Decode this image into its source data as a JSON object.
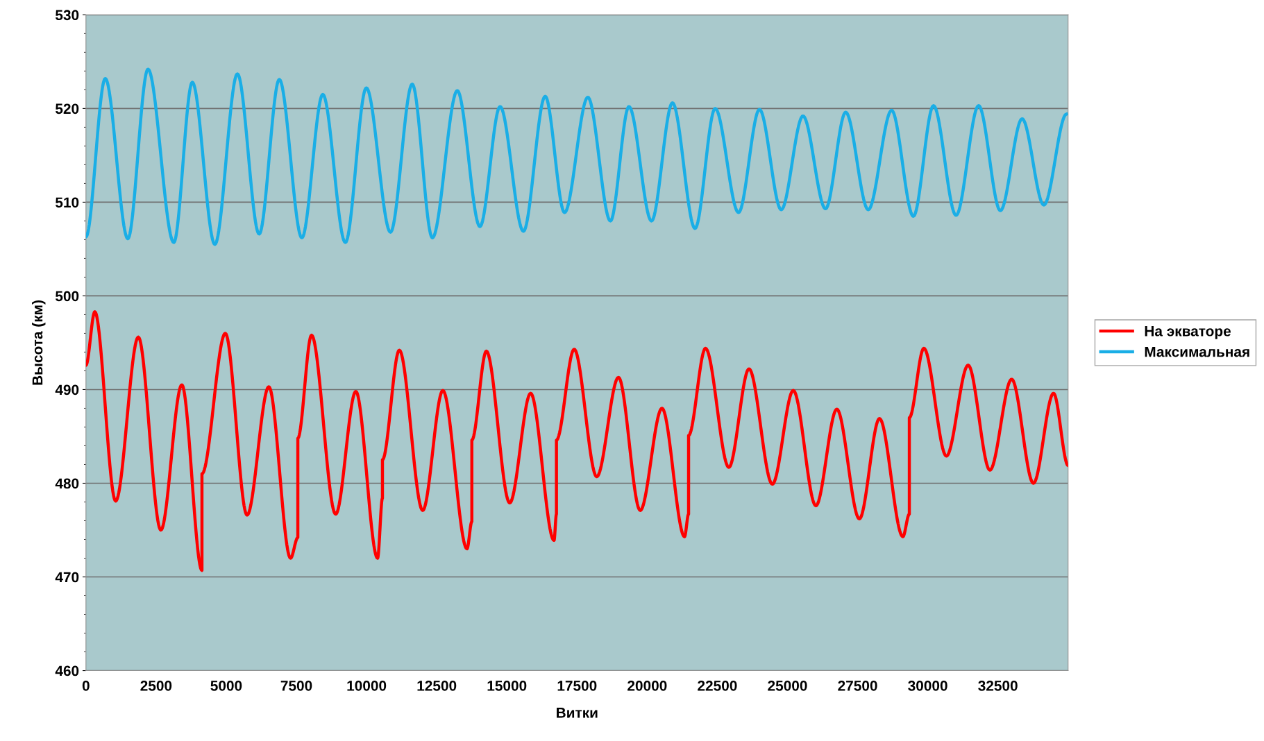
{
  "chart_data": {
    "type": "line",
    "xlabel": "Витки",
    "ylabel": "Высота (км)",
    "xlim": [
      0,
      35000
    ],
    "xticks": [
      0,
      2500,
      5000,
      7500,
      10000,
      12500,
      15000,
      17500,
      20000,
      22500,
      25000,
      27500,
      30000,
      32500
    ],
    "ylim": [
      460,
      530
    ],
    "yticks": [
      460,
      470,
      480,
      490,
      500,
      510,
      520,
      530
    ],
    "grid": "y",
    "legend": "right",
    "marker": "none",
    "line_style": "solid",
    "series": [
      {
        "name": "На экваторе",
        "color": "#ff0000",
        "x": [
          0,
          316,
          1060,
          1866,
          2670,
          3417,
          4134,
          4134,
          4967,
          5742,
          6517,
          7292,
          7551,
          7551,
          8039,
          8900,
          9618,
          10393,
          10566,
          10566,
          11168,
          12001,
          12719,
          13580,
          13752,
          13752,
          14269,
          15102,
          15848,
          16681,
          16767,
          16767,
          17399,
          18203,
          18978,
          19753,
          20528,
          21332,
          21476,
          21476,
          22079,
          22911,
          23629,
          24462,
          25208,
          26012,
          26759,
          27563,
          28280,
          29113,
          29343,
          29343,
          29860,
          30664,
          31439,
          32214,
          32990,
          33765,
          34482,
          35000
        ],
        "values": [
          492.6,
          498.3,
          478.1,
          495.6,
          475,
          490.5,
          470.7,
          481,
          496,
          476.6,
          490.3,
          472,
          474.2,
          484.8,
          495.8,
          476.7,
          489.8,
          472,
          478.4,
          482.5,
          494.2,
          477.1,
          489.9,
          473,
          475.9,
          484.6,
          494.1,
          477.9,
          489.6,
          473.9,
          476.7,
          484.6,
          494.3,
          480.7,
          491.3,
          477.1,
          488,
          474.3,
          476.7,
          485.1,
          494.4,
          481.7,
          492.2,
          479.9,
          489.9,
          477.6,
          487.9,
          476.2,
          486.9,
          474.3,
          476.7,
          487,
          494.4,
          482.9,
          492.6,
          481.4,
          491.1,
          480,
          489.6,
          481.9
        ]
      },
      {
        "name": "Максимальная",
        "color": "#1aaee6",
        "x": [
          0,
          689,
          1493,
          2211,
          3130,
          3790,
          4594,
          5398,
          6173,
          6891,
          7695,
          8441,
          9245,
          9992,
          10853,
          11628,
          12346,
          13235,
          14040,
          14758,
          15590,
          16366,
          17055,
          17887,
          18691,
          19351,
          20155,
          20902,
          21706,
          22424,
          23256,
          24003,
          24778,
          25553,
          26357,
          27075,
          27879,
          28712,
          29487,
          30204,
          31008,
          31812,
          32587,
          33362,
          34137,
          34942
        ],
        "values": [
          506.3,
          523.2,
          506.1,
          524.2,
          505.7,
          522.8,
          505.5,
          523.7,
          506.6,
          523.1,
          506.2,
          521.5,
          505.7,
          522.2,
          506.8,
          522.6,
          506.2,
          521.9,
          507.4,
          520.2,
          506.9,
          521.3,
          508.9,
          521.2,
          508,
          520.2,
          508,
          520.6,
          507.2,
          520,
          508.9,
          519.9,
          509.2,
          519.2,
          509.3,
          519.6,
          509.2,
          519.8,
          508.5,
          520.3,
          508.6,
          520.3,
          509.1,
          518.9,
          509.7,
          519.4
        ]
      }
    ]
  }
}
